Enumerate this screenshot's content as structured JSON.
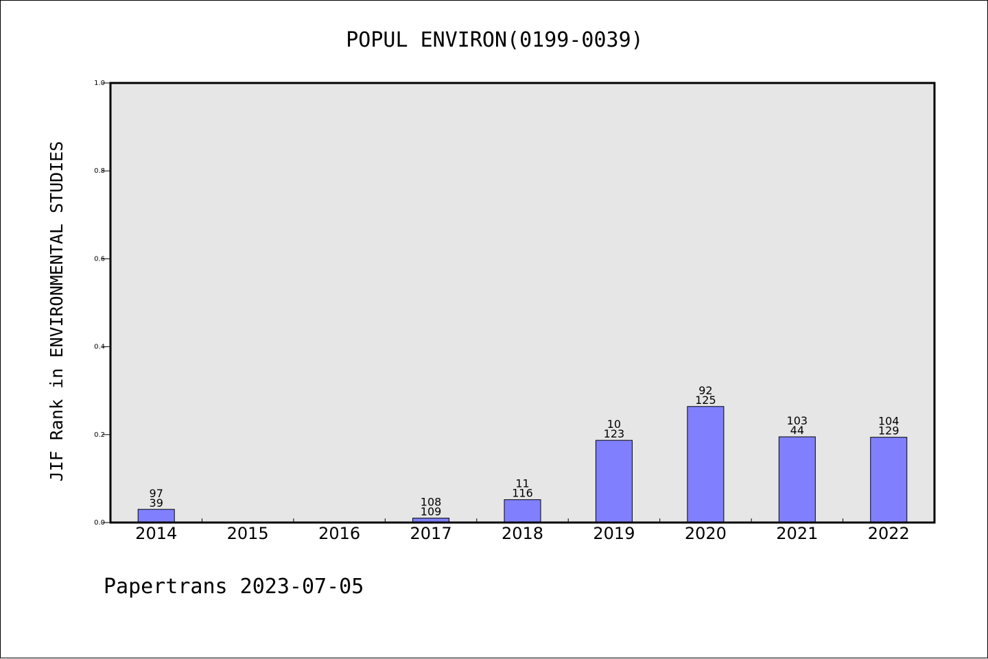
{
  "chart_data": {
    "type": "bar",
    "title": "POPUL ENVIRON(0199-0039)",
    "ylabel": "JIF Rank in ENVIRONMENTAL STUDIES",
    "xlabel": "",
    "categories": [
      "2014",
      "2015",
      "2016",
      "2017",
      "2018",
      "2019",
      "2020",
      "2021",
      "2022"
    ],
    "values": [
      0.03,
      0,
      0,
      0.01,
      0.052,
      0.187,
      0.264,
      0.195,
      0.194
    ],
    "bar_labels_top": [
      "97",
      "",
      "",
      "108",
      "11",
      "10",
      "92",
      "103",
      "104"
    ],
    "bar_labels_bottom": [
      "39",
      "",
      "",
      "109",
      "116",
      "123",
      "125",
      "44",
      "129"
    ],
    "ylim": [
      0,
      1.0
    ],
    "yticks": [
      "0.0",
      "0.2",
      "0.4",
      "0.6",
      "0.8",
      "1.0"
    ],
    "grid": false,
    "colors": {
      "bar": "#8080ff",
      "plot_bg": "#e6e6e6"
    }
  },
  "footer": {
    "text": "Papertrans 2023-07-05"
  }
}
